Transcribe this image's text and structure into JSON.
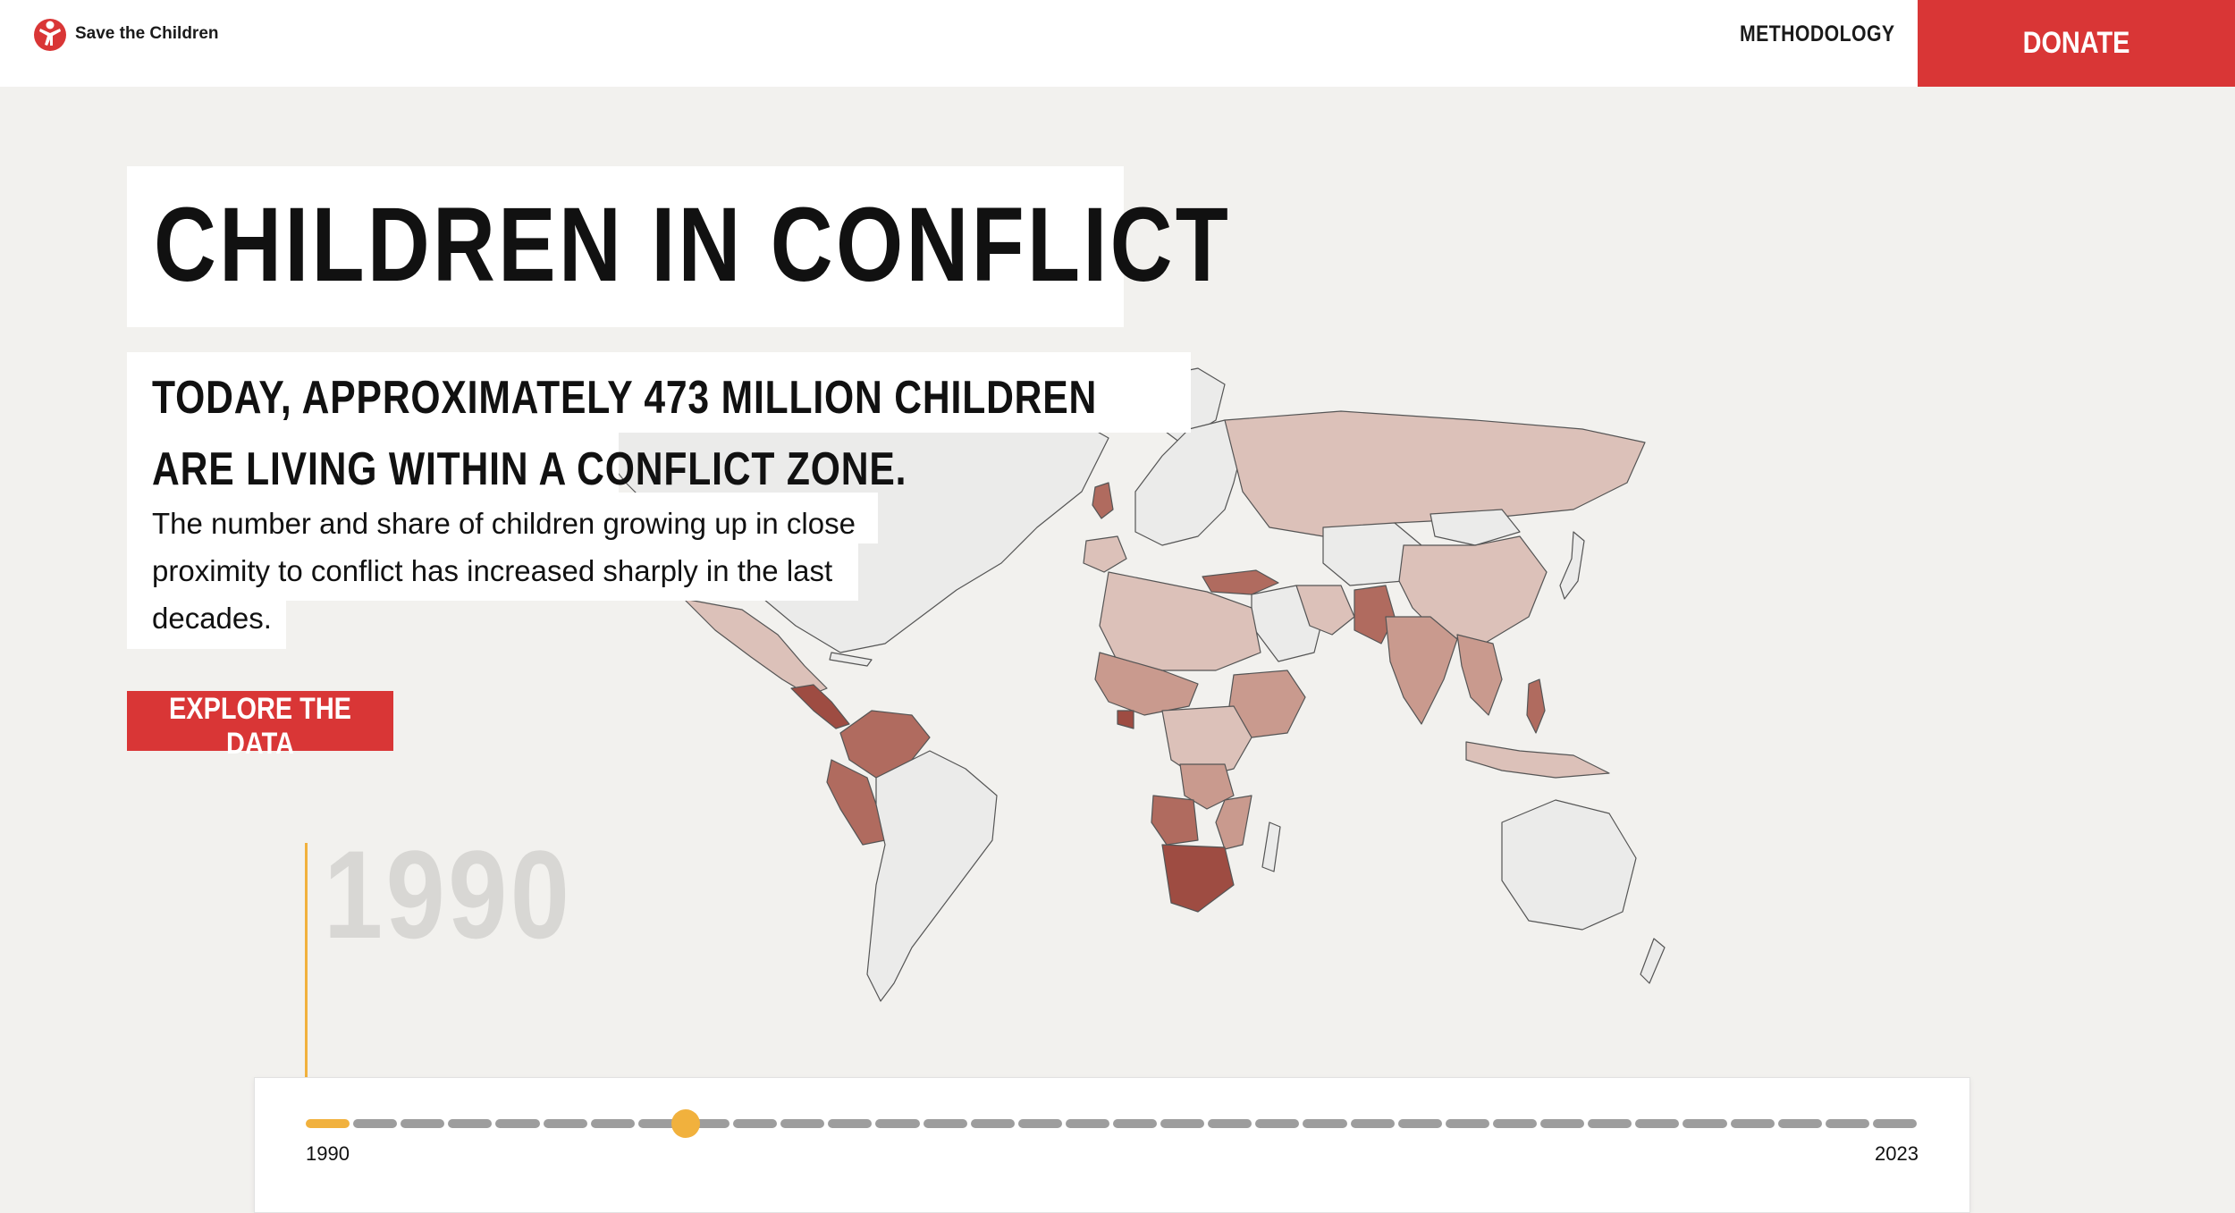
{
  "header": {
    "logo_text": "Save the Children",
    "nav_methodology": "METHODOLOGY",
    "donate_label": "DONATE"
  },
  "hero": {
    "title": "CHILDREN IN CONFLICT",
    "subheadline": "TODAY, APPROXIMATELY 473 MILLION CHILDREN ARE LIVING WITHIN A CONFLICT ZONE.",
    "body": "The number and share of children growing up in close proximity to conflict has increased sharply in the last decades.",
    "cta_label": "EXPLORE THE DATA",
    "year_display": "1990"
  },
  "timeline": {
    "start_label": "1990",
    "end_label": "2023",
    "segment_count": 34,
    "selected_index": 8,
    "active_until_index": 0
  },
  "colors": {
    "brand_red": "#d93636",
    "accent_yellow": "#f1b13d",
    "map_none": "#ebebea",
    "map_low": "#dcc1b9",
    "map_mid": "#c99a8e",
    "map_high": "#b06b5f",
    "map_severe": "#9e4c42"
  }
}
